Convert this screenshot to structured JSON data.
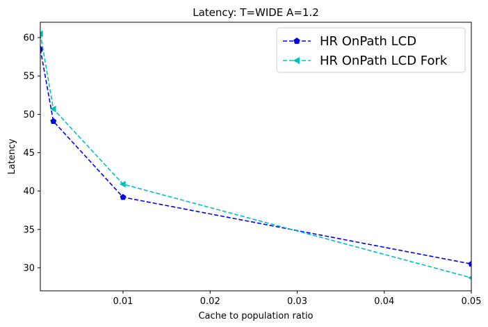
{
  "chart_data": {
    "type": "line",
    "title": "Latency: T=WIDE A=1.2",
    "xlabel": "Cache to population ratio",
    "ylabel": "Latency",
    "xlim": [
      0.0005,
      0.05
    ],
    "ylim": [
      27,
      62
    ],
    "x_ticks": [
      0.01,
      0.02,
      0.03,
      0.04,
      0.05
    ],
    "x_tick_labels": [
      "0.01",
      "0.02",
      "0.03",
      "0.04",
      "0.05"
    ],
    "y_ticks": [
      30,
      35,
      40,
      45,
      50,
      55,
      60
    ],
    "y_tick_labels": [
      "30",
      "35",
      "40",
      "45",
      "50",
      "55",
      "60"
    ],
    "grid": false,
    "legend_position": "top-right",
    "series": [
      {
        "name": "HR OnPath LCD",
        "color": "#0000ee",
        "marker": "pentagon",
        "line_style": "dashed",
        "x": [
          0.0005,
          0.002,
          0.01,
          0.05
        ],
        "y": [
          58.5,
          49.1,
          39.2,
          30.5
        ]
      },
      {
        "name": "HR OnPath LCD Fork",
        "color": "#00bfbf",
        "marker": "triangle-left",
        "line_style": "dashed",
        "x": [
          0.0005,
          0.002,
          0.01,
          0.05
        ],
        "y": [
          60.5,
          50.7,
          40.9,
          28.7
        ]
      }
    ]
  }
}
